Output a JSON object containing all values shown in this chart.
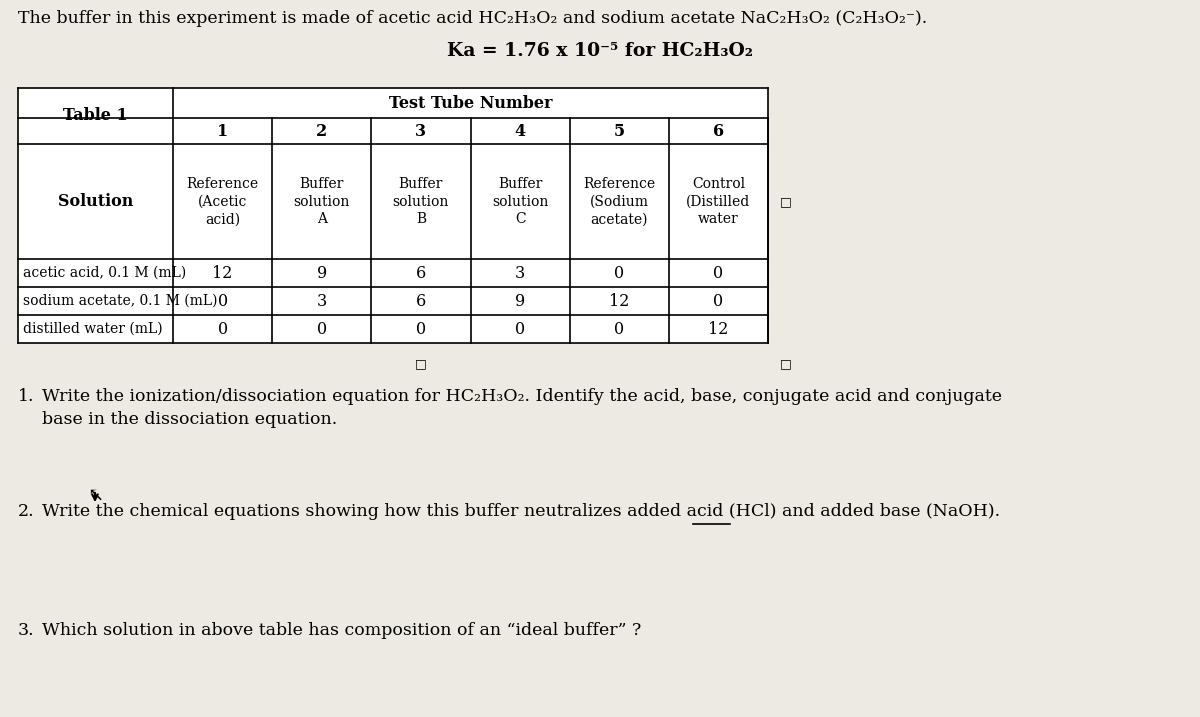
{
  "bg_color": "#ede9e3",
  "title_line1": "The buffer in this experiment is made of acetic acid HC₂H₃O₂ and sodium acetate NaC₂H₃O₂ (C₂H₃O₂⁻).",
  "title_line2": "Ka = 1.76 x 10⁻⁵ for HC₂H₃O₂",
  "table_header": "Test Tube Number",
  "table_label": "Table 1",
  "col_headers": [
    "1",
    "2",
    "3",
    "4",
    "5",
    "6"
  ],
  "row_solution": [
    "Reference\n(Acetic\nacid)",
    "Buffer\nsolution\nA",
    "Buffer\nsolution\nB",
    "Buffer\nsolution\nC",
    "Reference\n(Sodium\nacetate)",
    "Control\n(Distilled\nwater"
  ],
  "row_labels": [
    "Solution",
    "acetic acid, 0.1 M (mL)",
    "sodium acetate, 0.1 M (mL)",
    "distilled water (mL)"
  ],
  "data_rows": [
    [
      "12",
      "9",
      "6",
      "3",
      "0",
      "0"
    ],
    [
      "0",
      "3",
      "6",
      "9",
      "12",
      "0"
    ],
    [
      "0",
      "0",
      "0",
      "0",
      "0",
      "12"
    ]
  ],
  "q1_num": "1.",
  "q1_text": "Write the ionization/dissociation equation for HC₂H₃O₂. Identify the acid, base, conjugate acid and conjugate\nbase in the dissociation equation.",
  "q2_num": "2.",
  "q2_text": "Write the chemical equations showing how this buffer neutralizes added acid (HCl) and added base (NaOH).",
  "q3_num": "3.",
  "q3_text": "Which solution in above table has composition of an “ideal buffer” ?"
}
